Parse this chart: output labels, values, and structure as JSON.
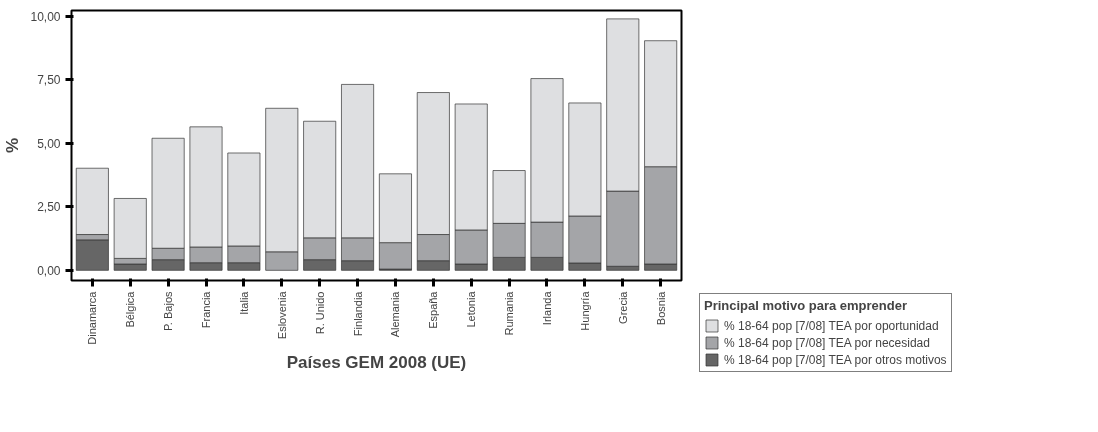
{
  "chart_data": {
    "type": "bar",
    "stacked": true,
    "xlabel": "Países GEM 2008 (UE)",
    "ylabel": "%",
    "legend_title": "Principal motivo para emprender",
    "categories": [
      "Dinamarca",
      "Bélgica",
      "P. Bajos",
      "Francia",
      "Italia",
      "Eslovenia",
      "R. Unido",
      "Finlandia",
      "Alemania",
      "España",
      "Letonia",
      "Rumania",
      "Irlanda",
      "Hungría",
      "Grecia",
      "Bosnia"
    ],
    "series": [
      {
        "name": "% 18-64 pop [7/08] TEA por otros motivos",
        "color": "#666666",
        "values": [
          1.2,
          0.25,
          0.42,
          0.3,
          0.3,
          null,
          0.42,
          0.38,
          0.05,
          0.38,
          0.25,
          0.51,
          0.51,
          0.29,
          0.16,
          0.25
        ]
      },
      {
        "name": "% 18-64 pop [7/08] TEA por necesidad",
        "color": "#a4a5a8",
        "values": [
          0.21,
          0.22,
          0.45,
          0.62,
          0.66,
          0.73,
          0.86,
          0.9,
          1.04,
          1.03,
          1.34,
          1.34,
          1.39,
          1.85,
          2.96,
          3.83
        ]
      },
      {
        "name": "% 18-64 pop [7/08] TEA por oportunidad",
        "color": "#dedfe1",
        "values": [
          2.61,
          2.36,
          4.33,
          4.73,
          3.66,
          5.65,
          4.59,
          6.04,
          2.71,
          5.59,
          4.96,
          2.08,
          5.65,
          4.45,
          6.78,
          4.96
        ]
      }
    ],
    "ylim": [
      -0.4,
      10.23
    ],
    "yticks": [
      {
        "value": 0,
        "label": "0,00"
      },
      {
        "value": 2.5,
        "label": "2,50"
      },
      {
        "value": 5,
        "label": "5,00"
      },
      {
        "value": 7.5,
        "label": "7,50"
      },
      {
        "value": 10,
        "label": "10,00"
      }
    ],
    "grid": false,
    "legend": "bottom right"
  }
}
